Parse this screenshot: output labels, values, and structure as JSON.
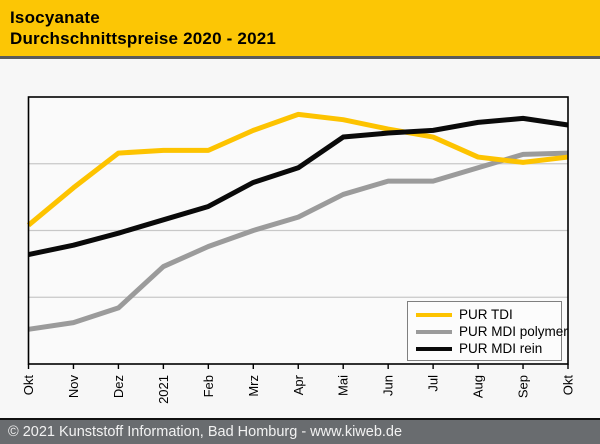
{
  "header": {
    "title": "Isocyanate",
    "subtitle": "Durchschnittspreise 2020 - 2021"
  },
  "footer": {
    "text": "© 2021 Kunststoff Information, Bad Homburg - www.kiweb.de"
  },
  "colors": {
    "header_bg": "#fcc605",
    "header_separator": "#5a5a5a",
    "footer_bg": "#696c6f",
    "plot_border": "#000000",
    "gridline": "#c8c8c8",
    "series_tdi": "#fdc300",
    "series_mdi_polymer": "#9b9b9b",
    "series_mdi_rein": "#0a0a0a"
  },
  "chart_data": {
    "type": "line",
    "title": "Isocyanate Durchschnittspreise 2020 - 2021",
    "xlabel": "",
    "ylabel": "",
    "y_axis_note": "no y-axis tick labels visible; values are estimated percent of plot height (0 = bottom border, 100 = top border)",
    "ylim": [
      0,
      100
    ],
    "grid": "3 horizontal gridlines at 25/50/75",
    "legend_position": "inside bottom-right",
    "categories": [
      "Okt",
      "Nov",
      "Dez",
      "2021",
      "Feb",
      "Mrz",
      "Apr",
      "Mai",
      "Jun",
      "Jul",
      "Aug",
      "Sep",
      "Okt"
    ],
    "series": [
      {
        "name": "PUR TDI",
        "color": "#fdc300",
        "values": [
          52,
          66,
          79,
          80,
          80,
          87.5,
          93.5,
          91.5,
          88,
          85,
          77.5,
          75.5,
          77.5
        ]
      },
      {
        "name": "PUR MDI polymer",
        "color": "#9b9b9b",
        "values": [
          13,
          15.5,
          21,
          36.5,
          44,
          50,
          55,
          63.5,
          68.5,
          68.5,
          73.5,
          78.5,
          79
        ]
      },
      {
        "name": "PUR MDI rein",
        "color": "#0a0a0a",
        "values": [
          41,
          44.5,
          49,
          54,
          59,
          68,
          73.5,
          85,
          86.5,
          87.5,
          90.5,
          92,
          89.5
        ]
      }
    ]
  }
}
